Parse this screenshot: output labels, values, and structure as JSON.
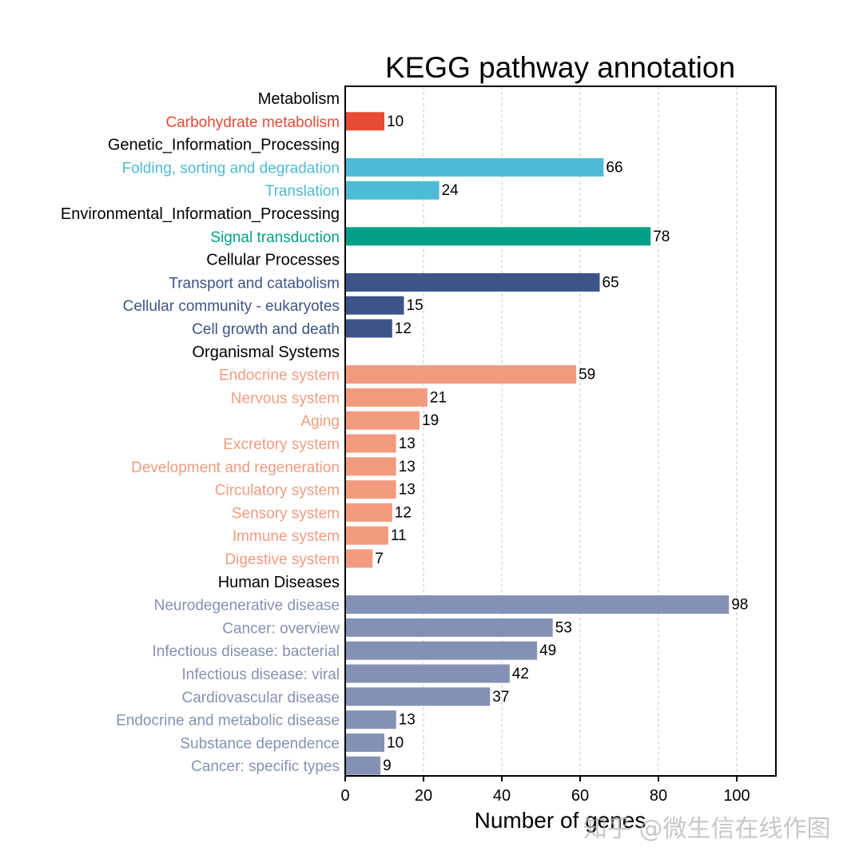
{
  "chart_data": {
    "type": "bar",
    "orientation": "horizontal",
    "title": "KEGG pathway annotation",
    "xlabel": "Number of genes",
    "ylabel": "",
    "xlim": [
      0,
      110
    ],
    "xticks": [
      0,
      20,
      40,
      60,
      80,
      100
    ],
    "grid": "vertical dashed",
    "groups": [
      {
        "name": "Metabolism",
        "color": "#E64B35",
        "items": [
          {
            "label": "Carbohydrate metabolism",
            "value": 10
          }
        ]
      },
      {
        "name": "Genetic_Information_Processing",
        "color": "#4DBBD5",
        "items": [
          {
            "label": "Folding, sorting and degradation",
            "value": 66
          },
          {
            "label": "Translation",
            "value": 24
          }
        ]
      },
      {
        "name": "Environmental_Information_Processing",
        "color": "#00A087",
        "items": [
          {
            "label": "Signal transduction",
            "value": 78
          }
        ]
      },
      {
        "name": "Cellular Processes",
        "color": "#3C5488",
        "items": [
          {
            "label": "Transport and catabolism",
            "value": 65
          },
          {
            "label": "Cellular community - eukaryotes",
            "value": 15
          },
          {
            "label": "Cell growth and death",
            "value": 12
          }
        ]
      },
      {
        "name": "Organismal Systems",
        "color": "#F39B7F",
        "items": [
          {
            "label": "Endocrine system",
            "value": 59
          },
          {
            "label": "Nervous system",
            "value": 21
          },
          {
            "label": "Aging",
            "value": 19
          },
          {
            "label": "Excretory system",
            "value": 13
          },
          {
            "label": "Development and regeneration",
            "value": 13
          },
          {
            "label": "Circulatory system",
            "value": 13
          },
          {
            "label": "Sensory system",
            "value": 12
          },
          {
            "label": "Immune system",
            "value": 11
          },
          {
            "label": "Digestive system",
            "value": 7
          }
        ]
      },
      {
        "name": "Human Diseases",
        "color": "#8491B4",
        "items": [
          {
            "label": "Neurodegenerative disease",
            "value": 98
          },
          {
            "label": "Cancer: overview",
            "value": 53
          },
          {
            "label": "Infectious disease: bacterial",
            "value": 49
          },
          {
            "label": "Infectious disease: viral",
            "value": 42
          },
          {
            "label": "Cardiovascular disease",
            "value": 37
          },
          {
            "label": "Endocrine and metabolic disease",
            "value": 13
          },
          {
            "label": "Substance dependence",
            "value": 10
          },
          {
            "label": "Cancer: specific types",
            "value": 9
          }
        ]
      }
    ]
  },
  "watermark": "知乎 @微生信在线作图"
}
